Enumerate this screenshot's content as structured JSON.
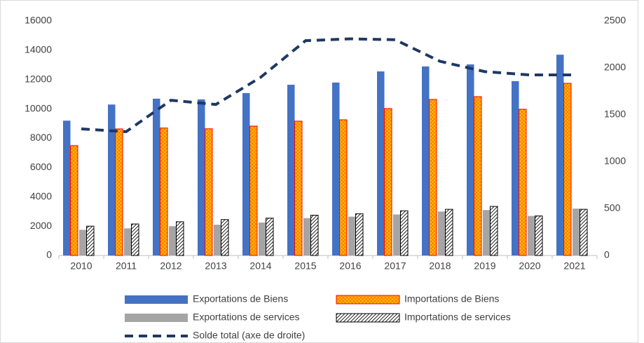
{
  "chart_data": {
    "type": "bar",
    "categories": [
      "2010",
      "2011",
      "2012",
      "2013",
      "2014",
      "2015",
      "2016",
      "2017",
      "2018",
      "2019",
      "2020",
      "2021"
    ],
    "series": [
      {
        "name": "Exportations de Biens",
        "color": "#4472c4",
        "values": [
          9200,
          10300,
          10700,
          10650,
          11080,
          11650,
          11800,
          12560,
          12900,
          13040,
          11900,
          13700
        ]
      },
      {
        "name": "Importations de Biens",
        "color": "#ffc000",
        "pattern": "crosshatch",
        "edge": "#ff0000",
        "values": [
          7500,
          8640,
          8700,
          8650,
          8830,
          9170,
          9260,
          10030,
          10650,
          10840,
          9980,
          11750
        ]
      },
      {
        "name": "Exportations de services",
        "color": "#a5a5a5",
        "values": [
          1750,
          1850,
          2000,
          2100,
          2250,
          2550,
          2650,
          2800,
          3000,
          3100,
          2700,
          3200
        ]
      },
      {
        "name": "Importations de services",
        "color": "#ffffff",
        "pattern": "diagonal",
        "edge": "#000000",
        "values": [
          2000,
          2150,
          2300,
          2450,
          2550,
          2750,
          2850,
          3050,
          3150,
          3350,
          2700,
          3150
        ]
      },
      {
        "name": "Solde total (axe de droite)",
        "type": "line",
        "dashed": true,
        "color": "#1f3864",
        "axis": "y2",
        "values": [
          1350,
          1320,
          1655,
          1610,
          1900,
          2290,
          2310,
          2300,
          2070,
          1960,
          1925,
          1925
        ]
      }
    ],
    "ylim": [
      0,
      16000
    ],
    "yticks": [
      0,
      2000,
      4000,
      6000,
      8000,
      10000,
      12000,
      14000,
      16000
    ],
    "y2lim": [
      0,
      2500
    ],
    "y2ticks": [
      0,
      500,
      1000,
      1500,
      2000,
      2500
    ]
  }
}
